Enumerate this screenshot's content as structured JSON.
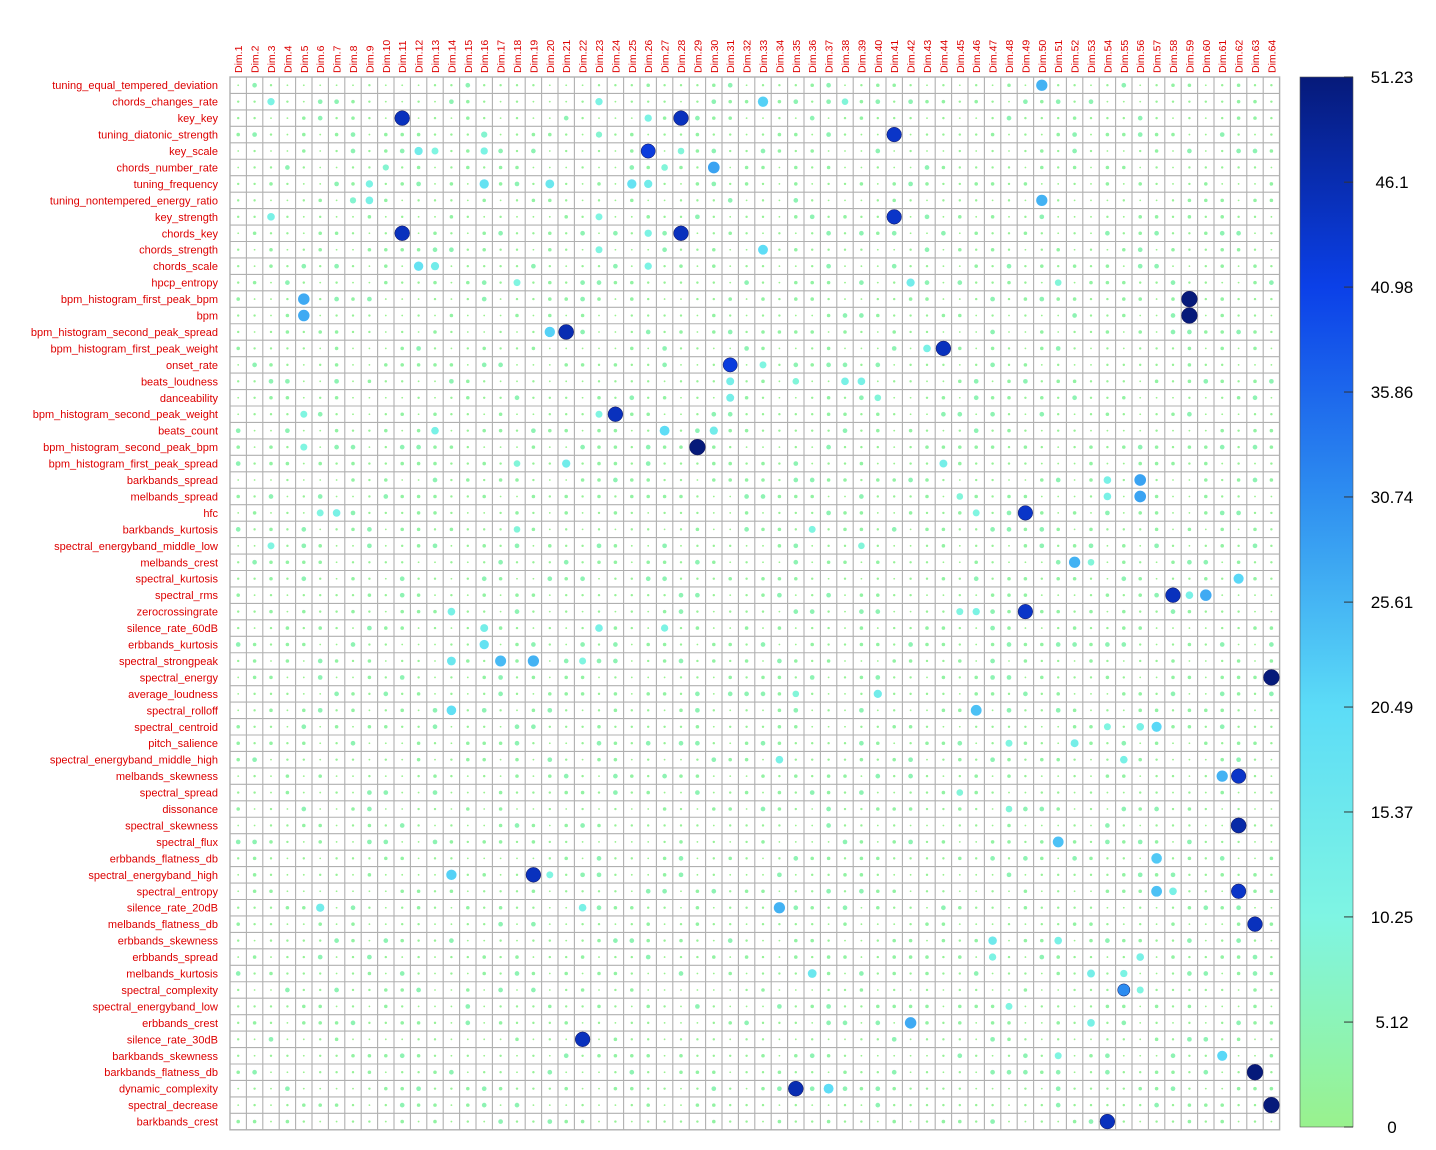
{
  "chart_data": {
    "type": "heatmap",
    "marker": "circle",
    "label_color": "#dd0000",
    "grid_color": "#b0b0b0",
    "rows": [
      "tuning_equal_tempered_deviation",
      "chords_changes_rate",
      "key_key",
      "tuning_diatonic_strength",
      "key_scale",
      "chords_number_rate",
      "tuning_frequency",
      "tuning_nontempered_energy_ratio",
      "key_strength",
      "chords_key",
      "chords_strength",
      "chords_scale",
      "hpcp_entropy",
      "bpm_histogram_first_peak_bpm",
      "bpm",
      "bpm_histogram_second_peak_spread",
      "bpm_histogram_first_peak_weight",
      "onset_rate",
      "beats_loudness",
      "danceability",
      "bpm_histogram_second_peak_weight",
      "beats_count",
      "bpm_histogram_second_peak_bpm",
      "bpm_histogram_first_peak_spread",
      "barkbands_spread",
      "melbands_spread",
      "hfc",
      "barkbands_kurtosis",
      "spectral_energyband_middle_low",
      "melbands_crest",
      "spectral_kurtosis",
      "spectral_rms",
      "zerocrossingrate",
      "silence_rate_60dB",
      "erbbands_kurtosis",
      "spectral_strongpeak",
      "spectral_energy",
      "average_loudness",
      "spectral_rolloff",
      "spectral_centroid",
      "pitch_salience",
      "spectral_energyband_middle_high",
      "melbands_skewness",
      "spectral_spread",
      "dissonance",
      "spectral_skewness",
      "spectral_flux",
      "erbbands_flatness_db",
      "spectral_energyband_high",
      "spectral_entropy",
      "silence_rate_20dB",
      "melbands_flatness_db",
      "erbbands_skewness",
      "erbbands_spread",
      "melbands_kurtosis",
      "spectral_complexity",
      "spectral_energyband_low",
      "erbbands_crest",
      "silence_rate_30dB",
      "barkbands_skewness",
      "barkbands_flatness_db",
      "dynamic_complexity",
      "spectral_decrease",
      "barkbands_crest"
    ],
    "columns": [
      "Dim.1",
      "Dim.2",
      "Dim.3",
      "Dim.4",
      "Dim.5",
      "Dim.6",
      "Dim.7",
      "Dim.8",
      "Dim.9",
      "Dim.10",
      "Dim.11",
      "Dim.12",
      "Dim.13",
      "Dim.14",
      "Dim.15",
      "Dim.16",
      "Dim.17",
      "Dim.18",
      "Dim.19",
      "Dim.20",
      "Dim.21",
      "Dim.22",
      "Dim.23",
      "Dim.24",
      "Dim.25",
      "Dim.26",
      "Dim.27",
      "Dim.28",
      "Dim.29",
      "Dim.30",
      "Dim.31",
      "Dim.32",
      "Dim.33",
      "Dim.34",
      "Dim.35",
      "Dim.36",
      "Dim.37",
      "Dim.38",
      "Dim.39",
      "Dim.40",
      "Dim.41",
      "Dim.42",
      "Dim.43",
      "Dim.44",
      "Dim.45",
      "Dim.46",
      "Dim.47",
      "Dim.48",
      "Dim.49",
      "Dim.50",
      "Dim.51",
      "Dim.52",
      "Dim.53",
      "Dim.54",
      "Dim.55",
      "Dim.56",
      "Dim.57",
      "Dim.58",
      "Dim.59",
      "Dim.60",
      "Dim.61",
      "Dim.62",
      "Dim.63",
      "Dim.64"
    ],
    "value_range": [
      0,
      51.23
    ],
    "colorbar": {
      "ticks": [
        0,
        5.12,
        10.25,
        15.37,
        20.49,
        25.61,
        30.74,
        35.86,
        40.98,
        46.1,
        51.23
      ],
      "tick_labels": [
        "0",
        "5.12",
        "10.25",
        "15.37",
        "20.49",
        "25.61",
        "30.74",
        "35.86",
        "40.98",
        "46.1",
        "51.23"
      ],
      "colors": [
        "#99f28d",
        "#7ff5e3",
        "#5cdcf7",
        "#2e8ef0",
        "#0b40e8",
        "#061a7a"
      ]
    },
    "highlights": [
      [
        0,
        49,
        26
      ],
      [
        1,
        2,
        11
      ],
      [
        1,
        22,
        11
      ],
      [
        1,
        32,
        22
      ],
      [
        1,
        37,
        9
      ],
      [
        2,
        10,
        45
      ],
      [
        2,
        27,
        45
      ],
      [
        2,
        25,
        11
      ],
      [
        3,
        40,
        44
      ],
      [
        3,
        15,
        8
      ],
      [
        3,
        22,
        8
      ],
      [
        4,
        25,
        42
      ],
      [
        4,
        11,
        14
      ],
      [
        4,
        12,
        10
      ],
      [
        4,
        15,
        11
      ],
      [
        4,
        27,
        9
      ],
      [
        5,
        29,
        28
      ],
      [
        5,
        9,
        8
      ],
      [
        5,
        26,
        9
      ],
      [
        6,
        15,
        18
      ],
      [
        6,
        19,
        16
      ],
      [
        6,
        24,
        18
      ],
      [
        6,
        25,
        14
      ],
      [
        6,
        8,
        11
      ],
      [
        7,
        49,
        26
      ],
      [
        7,
        8,
        12
      ],
      [
        7,
        7,
        8
      ],
      [
        8,
        40,
        44
      ],
      [
        8,
        2,
        12
      ],
      [
        8,
        22,
        10
      ],
      [
        9,
        10,
        45
      ],
      [
        9,
        27,
        45
      ],
      [
        9,
        25,
        11
      ],
      [
        10,
        32,
        20
      ],
      [
        10,
        22,
        10
      ],
      [
        11,
        11,
        18
      ],
      [
        11,
        12,
        14
      ],
      [
        11,
        25,
        11
      ],
      [
        12,
        41,
        14
      ],
      [
        12,
        17,
        10
      ],
      [
        12,
        50,
        9
      ],
      [
        13,
        58,
        51.23
      ],
      [
        13,
        4,
        27
      ],
      [
        14,
        58,
        51.23
      ],
      [
        14,
        4,
        27
      ],
      [
        15,
        20,
        46
      ],
      [
        15,
        19,
        22
      ],
      [
        16,
        43,
        45
      ],
      [
        16,
        42,
        12
      ],
      [
        17,
        30,
        42
      ],
      [
        17,
        32,
        10
      ],
      [
        18,
        30,
        13
      ],
      [
        18,
        37,
        12
      ],
      [
        18,
        38,
        12
      ],
      [
        18,
        34,
        9
      ],
      [
        19,
        30,
        13
      ],
      [
        19,
        39,
        9
      ],
      [
        20,
        23,
        45
      ],
      [
        20,
        22,
        10
      ],
      [
        20,
        4,
        10
      ],
      [
        21,
        26,
        20
      ],
      [
        21,
        29,
        14
      ],
      [
        21,
        12,
        12
      ],
      [
        22,
        28,
        51.23
      ],
      [
        22,
        4,
        10
      ],
      [
        23,
        20,
        14
      ],
      [
        23,
        43,
        13
      ],
      [
        23,
        17,
        9
      ],
      [
        24,
        55,
        28
      ],
      [
        24,
        53,
        12
      ],
      [
        25,
        55,
        28
      ],
      [
        25,
        53,
        12
      ],
      [
        25,
        44,
        9
      ],
      [
        26,
        48,
        44
      ],
      [
        26,
        6,
        12
      ],
      [
        26,
        5,
        10
      ],
      [
        26,
        45,
        10
      ],
      [
        27,
        35,
        10
      ],
      [
        27,
        17,
        9
      ],
      [
        28,
        2,
        10
      ],
      [
        28,
        38,
        9
      ],
      [
        29,
        51,
        26
      ],
      [
        29,
        52,
        9
      ],
      [
        30,
        61,
        21
      ],
      [
        31,
        57,
        45
      ],
      [
        31,
        59,
        27
      ],
      [
        31,
        58,
        12
      ],
      [
        32,
        48,
        44
      ],
      [
        32,
        13,
        12
      ],
      [
        32,
        45,
        11
      ],
      [
        32,
        44,
        10
      ],
      [
        33,
        15,
        13
      ],
      [
        33,
        22,
        12
      ],
      [
        33,
        26,
        11
      ],
      [
        34,
        15,
        18
      ],
      [
        35,
        18,
        26
      ],
      [
        35,
        16,
        25
      ],
      [
        35,
        13,
        16
      ],
      [
        35,
        21,
        10
      ],
      [
        36,
        63,
        51.23
      ],
      [
        37,
        39,
        14
      ],
      [
        37,
        34,
        9
      ],
      [
        38,
        45,
        24
      ],
      [
        38,
        13,
        19
      ],
      [
        39,
        56,
        21
      ],
      [
        39,
        55,
        12
      ],
      [
        39,
        53,
        10
      ],
      [
        40,
        51,
        13
      ],
      [
        40,
        47,
        10
      ],
      [
        41,
        33,
        12
      ],
      [
        41,
        54,
        12
      ],
      [
        42,
        61,
        44
      ],
      [
        42,
        60,
        26
      ],
      [
        43,
        44,
        9
      ],
      [
        44,
        47,
        9
      ],
      [
        45,
        61,
        47
      ],
      [
        46,
        50,
        24
      ],
      [
        47,
        56,
        23
      ],
      [
        48,
        18,
        45
      ],
      [
        48,
        13,
        22
      ],
      [
        48,
        19,
        10
      ],
      [
        49,
        61,
        44
      ],
      [
        49,
        56,
        24
      ],
      [
        49,
        57,
        12
      ],
      [
        50,
        33,
        26
      ],
      [
        50,
        5,
        14
      ],
      [
        50,
        21,
        12
      ],
      [
        51,
        62,
        45
      ],
      [
        52,
        46,
        15
      ],
      [
        52,
        50,
        12
      ],
      [
        53,
        55,
        12
      ],
      [
        53,
        46,
        11
      ],
      [
        54,
        35,
        16
      ],
      [
        54,
        52,
        13
      ],
      [
        54,
        54,
        11
      ],
      [
        55,
        54,
        31
      ],
      [
        55,
        55,
        10
      ],
      [
        56,
        47,
        10
      ],
      [
        57,
        41,
        27
      ],
      [
        57,
        52,
        12
      ],
      [
        58,
        21,
        45
      ],
      [
        59,
        60,
        21
      ],
      [
        59,
        50,
        10
      ],
      [
        60,
        62,
        51.23
      ],
      [
        61,
        34,
        46
      ],
      [
        61,
        36,
        20
      ],
      [
        62,
        63,
        51.23
      ],
      [
        63,
        53,
        45
      ]
    ]
  }
}
